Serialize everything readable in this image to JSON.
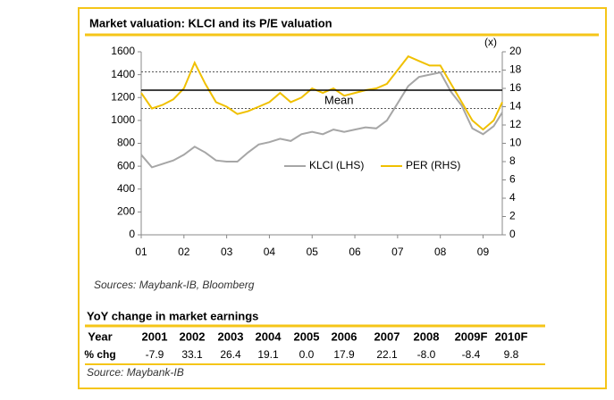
{
  "chart_data": {
    "type": "line",
    "title": "Market valuation: KLCI and its P/E valuation",
    "x": [
      2001.0,
      2001.25,
      2001.5,
      2001.75,
      2002.0,
      2002.25,
      2002.5,
      2002.75,
      2003.0,
      2003.25,
      2003.5,
      2003.75,
      2004.0,
      2004.25,
      2004.5,
      2004.75,
      2005.0,
      2005.25,
      2005.5,
      2005.75,
      2006.0,
      2006.25,
      2006.5,
      2006.75,
      2007.0,
      2007.25,
      2007.5,
      2007.75,
      2008.0,
      2008.25,
      2008.5,
      2008.75,
      2009.0,
      2009.25,
      2009.45
    ],
    "series": [
      {
        "name": "KLCI (LHS)",
        "color": "#a6a6a6",
        "values": [
          700,
          590,
          620,
          650,
          700,
          770,
          720,
          650,
          640,
          640,
          720,
          790,
          810,
          840,
          820,
          880,
          900,
          880,
          920,
          900,
          920,
          940,
          930,
          1000,
          1150,
          1300,
          1380,
          1400,
          1420,
          1250,
          1130,
          930,
          880,
          950,
          1070
        ]
      },
      {
        "name": "PER (RHS)",
        "color": "#f0c000",
        "axis": "y2",
        "values": [
          15.5,
          13.8,
          14.2,
          14.8,
          16,
          18.8,
          16.5,
          14.5,
          14,
          13.2,
          13.5,
          14,
          14.5,
          15.5,
          14.5,
          15,
          16,
          15.5,
          16,
          15.2,
          15.5,
          15.8,
          16,
          16.5,
          18,
          19.5,
          19,
          18.5,
          18.5,
          16.5,
          14.5,
          12.5,
          11.5,
          12.5,
          14.5
        ]
      }
    ],
    "xlim": [
      2001.0,
      2009.45
    ],
    "xticks": [
      {
        "value": 2001,
        "label": "01"
      },
      {
        "value": 2002,
        "label": "02"
      },
      {
        "value": 2003,
        "label": "03"
      },
      {
        "value": 2004,
        "label": "04"
      },
      {
        "value": 2005,
        "label": "05"
      },
      {
        "value": 2006,
        "label": "06"
      },
      {
        "value": 2007,
        "label": "07"
      },
      {
        "value": 2008,
        "label": "08"
      },
      {
        "value": 2009,
        "label": "09"
      }
    ],
    "ylim": [
      0,
      1600
    ],
    "yticks": [
      0,
      200,
      400,
      600,
      800,
      1000,
      1200,
      1400,
      1600
    ],
    "y2lim": [
      0,
      20
    ],
    "y2ticks": [
      0,
      2,
      4,
      6,
      8,
      10,
      12,
      14,
      16,
      18,
      20
    ],
    "y2_label": "(x)",
    "mean": 15.8,
    "mean_label": "Mean",
    "band_lines": [
      13.8,
      17.8
    ],
    "legend": "right",
    "source": "Sources: Maybank-IB, Bloomberg"
  },
  "table": {
    "title": "YoY change in market earnings",
    "columns": [
      "Year",
      "2001",
      "2002",
      "2003",
      "2004",
      "2005",
      "2006",
      "2007",
      "2008",
      "2009F",
      "2010F"
    ],
    "rows": [
      [
        "% chg",
        "-7.9",
        "33.1",
        "26.4",
        "19.1",
        "0.0",
        "17.9",
        "22.1",
        "-8.0",
        "-8.4",
        "9.8"
      ]
    ],
    "source": "Source: Maybank-IB"
  }
}
